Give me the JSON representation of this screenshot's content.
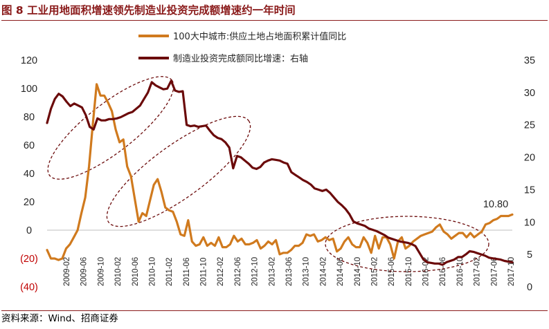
{
  "title": "图 8  工业用地面积增速领先制造业投资完成额增速约一年时间",
  "source_note": "资料来源：Wind、招商证券",
  "colors": {
    "series1": "#d07a1e",
    "series2": "#6b0a0a",
    "ellipse": "#6b0a0a",
    "title": "#8a1a1a",
    "negative_tick": "#c00000"
  },
  "chart_data": {
    "type": "line",
    "title": "工业用地面积增速领先制造业投资完成额增速约一年时间",
    "grid": false,
    "legend_position": "top-center",
    "left_axis": {
      "ylim": [
        -40,
        120
      ],
      "ticks": [
        120,
        100,
        80,
        60,
        40,
        20,
        0,
        -20,
        -40
      ],
      "tick_labels": [
        "120",
        "100",
        "80",
        "60",
        "40",
        "20",
        "0",
        "(20)",
        "(40)"
      ]
    },
    "right_axis": {
      "ylim": [
        0,
        35
      ],
      "ticks": [
        35,
        30,
        25,
        20,
        15,
        10,
        5,
        0
      ],
      "tick_labels": [
        "35",
        "30",
        "25",
        "20",
        "15",
        "10",
        "5",
        "0"
      ]
    },
    "x_tick_labels": [
      "2009-02",
      "2009-06",
      "2009-10",
      "2010-02",
      "2010-06",
      "2010-10",
      "2011-02",
      "2011-06",
      "2011-10",
      "2012-02",
      "2012-06",
      "2012-10",
      "2013-02",
      "2013-06",
      "2013-10",
      "2014-02",
      "2014-06",
      "2014-10",
      "2015-02",
      "2015-06",
      "2015-10",
      "2016-02",
      "2016-06",
      "2016-10",
      "2017-02",
      "2017-06",
      "2017-10"
    ],
    "series": [
      {
        "name": "100大中城市:供应土地占地面积累计值同比",
        "axis": "left",
        "values": [
          -14,
          -20,
          -20,
          -21,
          -20,
          -13,
          -10,
          -5,
          0,
          12,
          23,
          45,
          75,
          103,
          95,
          95,
          90,
          84,
          71,
          62,
          64,
          45,
          38,
          22,
          6,
          12,
          10,
          21,
          32,
          36,
          27,
          16,
          14,
          13,
          6,
          -3,
          -4,
          7,
          -8,
          -11,
          -10,
          -5,
          -11,
          -9,
          -11,
          -5,
          -12,
          -12,
          -10,
          -4,
          -8,
          -6,
          -10,
          -10,
          -9,
          -7,
          -13,
          -11,
          -8,
          -10,
          -7,
          -17,
          -16,
          -16,
          -14,
          -11,
          -11,
          -9,
          -3,
          -4,
          -3,
          -8,
          -7,
          -5,
          -7,
          -6,
          -15,
          -13,
          -8,
          -5,
          -10,
          -12,
          -12,
          -5,
          -9,
          -16,
          -4,
          -13,
          -5,
          -5,
          -10,
          -20,
          -8,
          -5,
          -13,
          -11,
          -8,
          -6,
          -4,
          -3,
          -2,
          -1,
          2,
          4,
          -1,
          -3,
          -6,
          -4,
          -2,
          -2,
          -5,
          -2,
          -5,
          -3,
          -1,
          4,
          5,
          7,
          8,
          10,
          10,
          10,
          11
        ]
      },
      {
        "name": "制造业投资完成额同比增速：右轴",
        "axis": "right",
        "values": [
          25.3,
          27.5,
          29.0,
          29.8,
          29.4,
          28.6,
          27.9,
          28.3,
          28.0,
          27.7,
          26.5,
          24.7,
          24.3,
          26.0,
          25.7,
          25.7,
          25.9,
          25.9,
          26.0,
          26.2,
          26.5,
          26.8,
          27.0,
          27.5,
          28.0,
          29.0,
          30.0,
          31.6,
          31.1,
          30.8,
          30.5,
          30.6,
          31.8,
          30.3,
          30.1,
          30.2,
          25.0,
          24.8,
          24.9,
          24.7,
          24.8,
          24.9,
          24.1,
          23.4,
          23.0,
          22.8,
          22.3,
          21.5,
          18.3,
          20.2,
          20.0,
          19.5,
          19.0,
          18.4,
          18.2,
          18.5,
          19.2,
          19.5,
          19.7,
          19.6,
          19.5,
          19.2,
          19.0,
          17.7,
          17.3,
          16.9,
          16.5,
          16.2,
          15.8,
          15.2,
          15.0,
          14.8,
          15.0,
          14.5,
          13.8,
          13.1,
          12.6,
          12.0,
          11.2,
          10.1,
          9.8,
          9.6,
          9.4,
          9.0,
          8.8,
          8.6,
          8.3,
          8.0,
          7.6,
          7.4,
          7.2,
          7.0,
          6.9,
          6.8,
          6.6,
          6.3,
          5.3,
          4.3,
          3.8,
          3.7,
          3.6,
          3.6,
          3.4,
          3.8,
          4.0,
          4.2,
          4.6,
          4.6,
          5.0,
          5.5,
          5.4,
          5.2,
          5.0,
          4.8,
          4.5,
          4.4,
          4.3,
          4.2,
          4.0,
          3.9,
          3.8
        ]
      }
    ],
    "annotations": [
      {
        "text": "10.80",
        "series": 0
      }
    ]
  }
}
